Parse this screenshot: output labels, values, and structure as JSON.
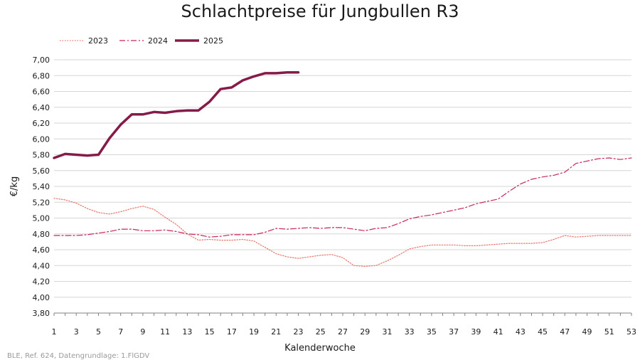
{
  "chart_data": {
    "type": "line",
    "title": "Schlachtpreise für Jungbullen R3",
    "xlabel": "Kalenderwoche",
    "ylabel": "€/kg",
    "ylim": [
      3.8,
      7.0
    ],
    "yticks": [
      "3,80",
      "4,00",
      "4,20",
      "4,40",
      "4,60",
      "4,80",
      "5,00",
      "5,20",
      "5,40",
      "5,60",
      "5,80",
      "6,00",
      "6,20",
      "6,40",
      "6,60",
      "6,80",
      "7,00"
    ],
    "ytick_values": [
      3.8,
      4.0,
      4.2,
      4.4,
      4.6,
      4.8,
      5.0,
      5.2,
      5.4,
      5.6,
      5.8,
      6.0,
      6.2,
      6.4,
      6.6,
      6.8,
      7.0
    ],
    "xlim": [
      1,
      53
    ],
    "xticks": [
      "1",
      "3",
      "5",
      "7",
      "9",
      "11",
      "13",
      "15",
      "17",
      "19",
      "21",
      "23",
      "25",
      "27",
      "29",
      "31",
      "33",
      "35",
      "37",
      "39",
      "41",
      "43",
      "45",
      "47",
      "49",
      "51",
      "53"
    ],
    "xtick_values": [
      1,
      3,
      5,
      7,
      9,
      11,
      13,
      15,
      17,
      19,
      21,
      23,
      25,
      27,
      29,
      31,
      33,
      35,
      37,
      39,
      41,
      43,
      45,
      47,
      49,
      51,
      53
    ],
    "grid": "horizontal",
    "legend": "top-left",
    "source": "BLE, Ref. 624, Datengrundlage: 1.FlGDV",
    "series": [
      {
        "name": "2023",
        "color": "#e8766b",
        "style": "dotted",
        "x": [
          1,
          2,
          3,
          4,
          5,
          6,
          7,
          8,
          9,
          10,
          11,
          12,
          13,
          14,
          15,
          16,
          17,
          18,
          19,
          20,
          21,
          22,
          23,
          24,
          25,
          26,
          27,
          28,
          29,
          30,
          31,
          32,
          33,
          34,
          35,
          36,
          37,
          38,
          39,
          40,
          41,
          42,
          43,
          44,
          45,
          46,
          47,
          48,
          49,
          50,
          51,
          52,
          53
        ],
        "values": [
          5.25,
          5.23,
          5.19,
          5.12,
          5.07,
          5.05,
          5.08,
          5.12,
          5.15,
          5.11,
          5.01,
          4.92,
          4.8,
          4.72,
          4.73,
          4.72,
          4.72,
          4.73,
          4.71,
          4.63,
          4.55,
          4.51,
          4.49,
          4.51,
          4.53,
          4.54,
          4.5,
          4.4,
          4.39,
          4.4,
          4.46,
          4.53,
          4.61,
          4.64,
          4.66,
          4.66,
          4.66,
          4.65,
          4.65,
          4.66,
          4.67,
          4.68,
          4.68,
          4.68,
          4.69,
          4.73,
          4.78,
          4.76,
          4.77,
          4.78,
          4.78,
          4.78,
          4.78
        ]
      },
      {
        "name": "2024",
        "color": "#c8255f",
        "style": "dashdot",
        "x": [
          1,
          2,
          3,
          4,
          5,
          6,
          7,
          8,
          9,
          10,
          11,
          12,
          13,
          14,
          15,
          16,
          17,
          18,
          19,
          20,
          21,
          22,
          23,
          24,
          25,
          26,
          27,
          28,
          29,
          30,
          31,
          32,
          33,
          34,
          35,
          36,
          37,
          38,
          39,
          40,
          41,
          42,
          43,
          44,
          45,
          46,
          47,
          48,
          49,
          50,
          51,
          52,
          53
        ],
        "values": [
          4.78,
          4.78,
          4.78,
          4.79,
          4.81,
          4.83,
          4.86,
          4.86,
          4.84,
          4.84,
          4.85,
          4.83,
          4.8,
          4.79,
          4.76,
          4.77,
          4.79,
          4.79,
          4.79,
          4.82,
          4.87,
          4.86,
          4.87,
          4.88,
          4.87,
          4.88,
          4.88,
          4.86,
          4.84,
          4.87,
          4.88,
          4.93,
          4.99,
          5.02,
          5.04,
          5.07,
          5.1,
          5.13,
          5.18,
          5.21,
          5.24,
          5.34,
          5.43,
          5.49,
          5.52,
          5.54,
          5.58,
          5.69,
          5.72,
          5.75,
          5.76,
          5.74,
          5.76
        ]
      },
      {
        "name": "2025",
        "color": "#851b48",
        "style": "solid",
        "x": [
          1,
          2,
          3,
          4,
          5,
          6,
          7,
          8,
          9,
          10,
          11,
          12,
          13,
          14,
          15,
          16,
          17,
          18,
          19,
          20,
          21,
          22,
          23
        ],
        "values": [
          5.76,
          5.81,
          5.8,
          5.79,
          5.8,
          6.01,
          6.18,
          6.31,
          6.31,
          6.34,
          6.33,
          6.35,
          6.36,
          6.36,
          6.47,
          6.63,
          6.65,
          6.74,
          6.79,
          6.83,
          6.83,
          6.84,
          6.84
        ]
      }
    ]
  }
}
